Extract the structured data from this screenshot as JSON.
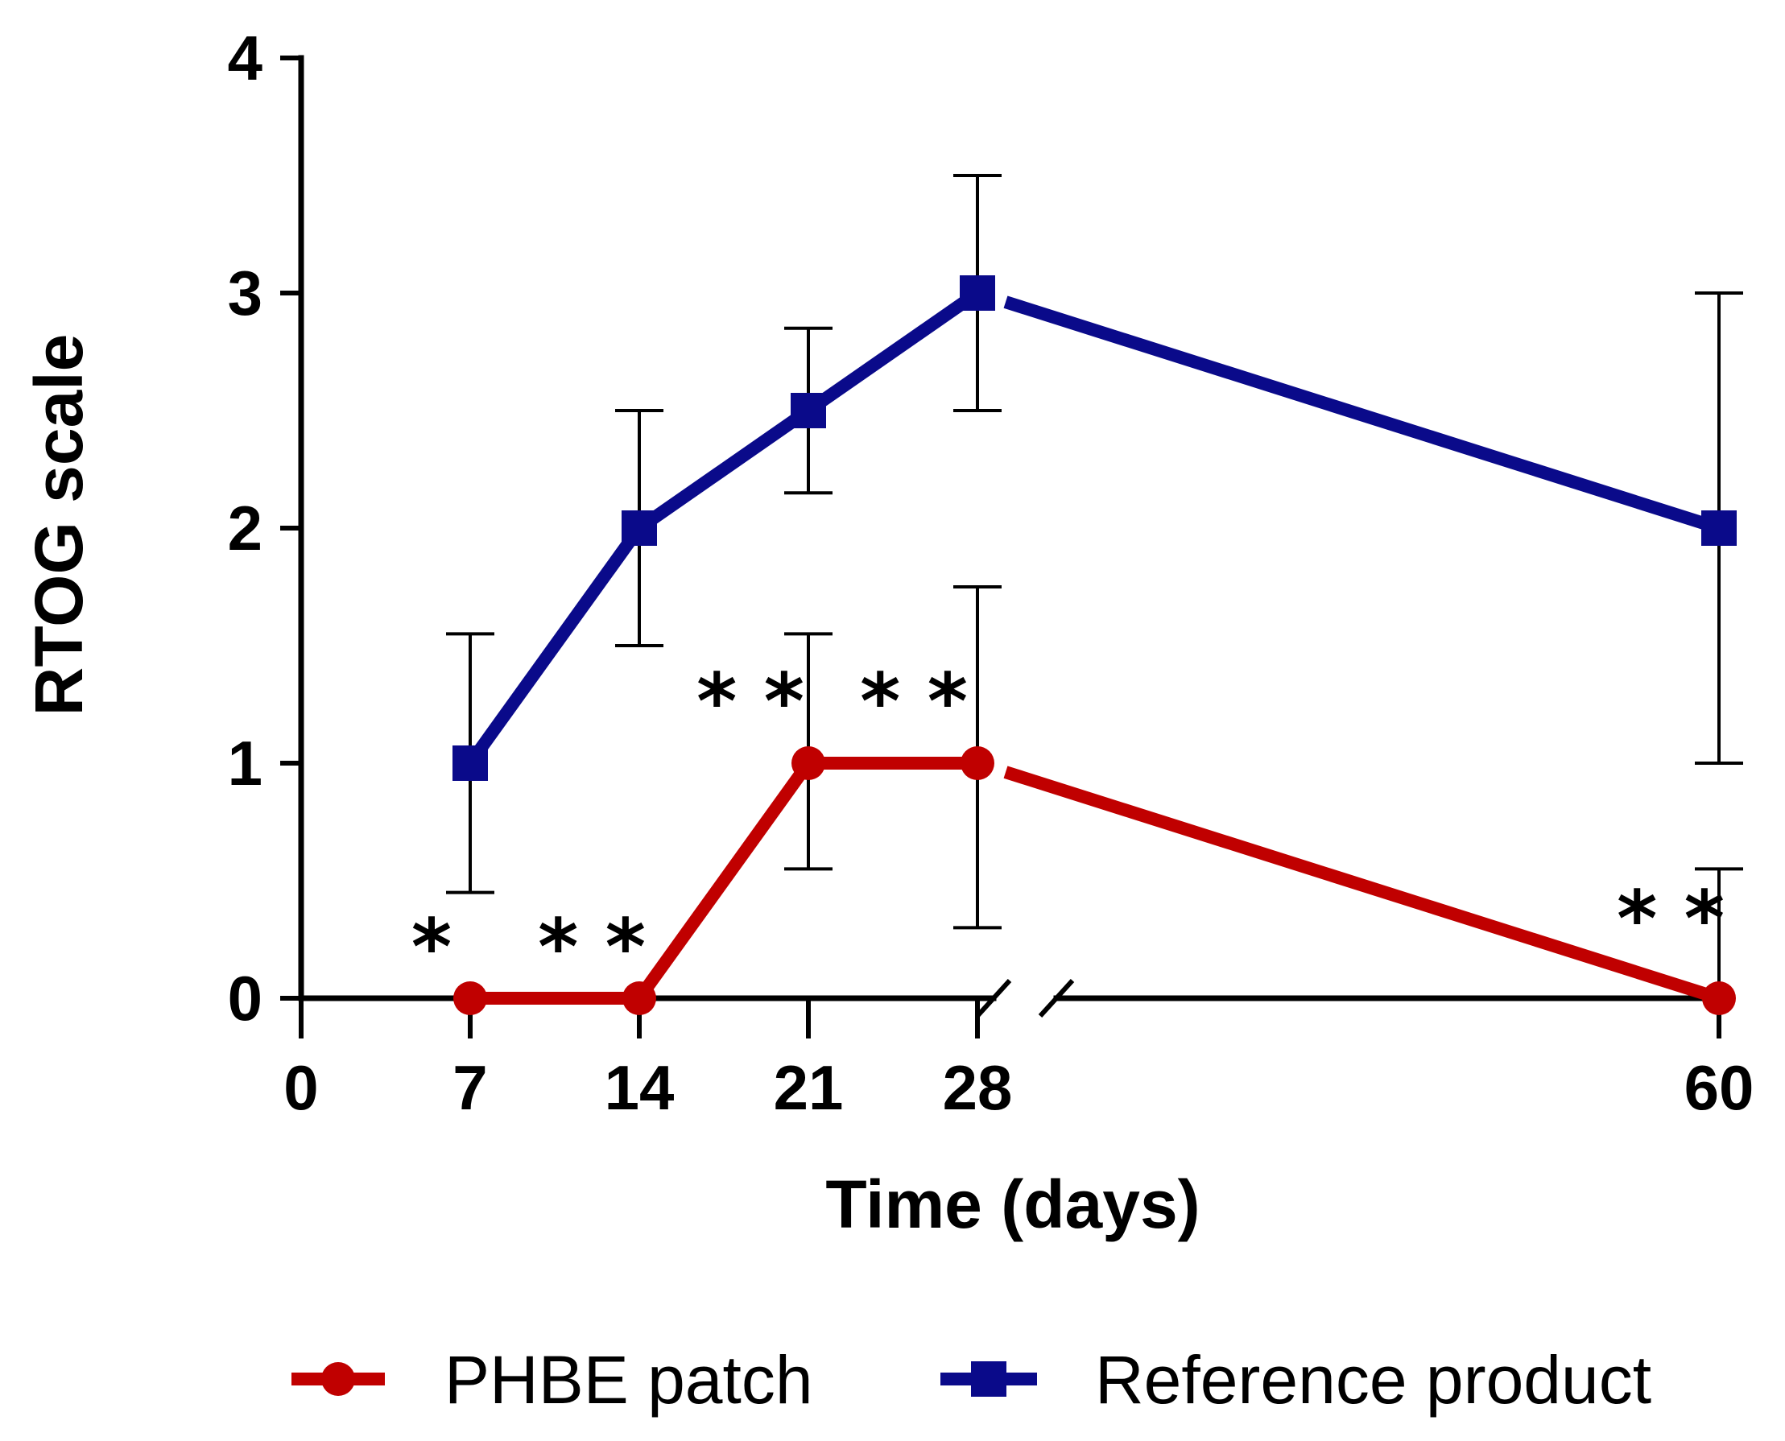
{
  "chart_data": {
    "type": "line",
    "title": "",
    "xlabel": "Time (days)",
    "ylabel": "RTOG scale",
    "x_ticks": [
      0,
      7,
      14,
      21,
      28,
      60
    ],
    "y_ticks": [
      0,
      1,
      2,
      3,
      4
    ],
    "ylim": [
      0,
      4
    ],
    "x_axis_break": [
      28,
      60
    ],
    "grid": false,
    "legend_position": "bottom",
    "series": [
      {
        "name": "PHBE patch",
        "color": "#c00000",
        "marker": "circle",
        "x": [
          7,
          14,
          21,
          28,
          60
        ],
        "values": [
          0,
          0,
          1,
          1,
          0
        ],
        "error_upper": [
          0,
          0,
          1.55,
          1.75,
          0.55
        ],
        "error_lower": [
          0,
          0,
          0.55,
          0.3,
          0
        ]
      },
      {
        "name": "Reference product",
        "color": "#0a0a8a",
        "marker": "square",
        "x": [
          7,
          14,
          21,
          28,
          60
        ],
        "values": [
          1,
          2,
          2.5,
          3,
          2
        ],
        "error_upper": [
          1.55,
          2.5,
          2.85,
          3.5,
          3.0
        ],
        "error_lower": [
          0.45,
          1.5,
          2.15,
          2.5,
          1.0
        ]
      }
    ],
    "annotations": [
      {
        "text": "*",
        "x": 7
      },
      {
        "text": "* *",
        "x": 14
      },
      {
        "text": "* *",
        "x": 21
      },
      {
        "text": "* *",
        "x": 28
      },
      {
        "text": "* *",
        "x": 60
      }
    ]
  }
}
